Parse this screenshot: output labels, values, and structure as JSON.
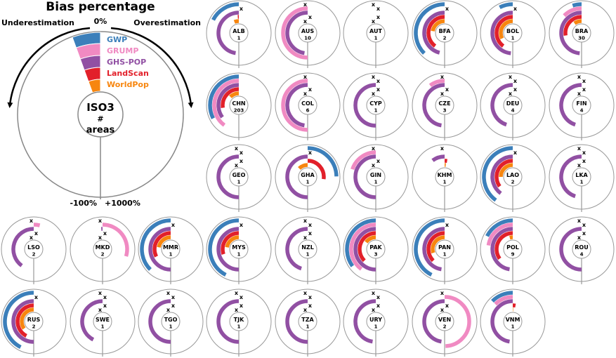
{
  "legend": {
    "title": "Bias percentage",
    "zero_label": "0%",
    "min_label": "-100%",
    "max_label": "+1000%",
    "under_label": "Underestimation",
    "over_label": "Overestimation",
    "center_line1": "ISO3",
    "center_line2": "#",
    "center_line3": "areas",
    "products": [
      {
        "name": "GWP",
        "color": "#3b7fba"
      },
      {
        "name": "GRUMP",
        "color": "#f08ac2"
      },
      {
        "name": "GHS-POP",
        "color": "#9150a3"
      },
      {
        "name": "LandScan",
        "color": "#e2202a"
      },
      {
        "name": "WorldPop",
        "color": "#f7860f"
      }
    ]
  },
  "chart_data": {
    "type": "radial-bar-small-multiples",
    "title": "Bias percentage",
    "series": [
      "GWP",
      "GRUMP",
      "GHS-POP",
      "LandScan",
      "WorldPop"
    ],
    "scale": {
      "under_min": -100,
      "over_max": 1000,
      "zero": 0
    },
    "missing_marker": "x",
    "countries": [
      {
        "iso": "ALB",
        "n": "1",
        "values": [
          -35,
          null,
          -95,
          -2,
          -12
        ]
      },
      {
        "iso": "AUS",
        "n": "10",
        "values": [
          null,
          -100,
          -95,
          null,
          null
        ]
      },
      {
        "iso": "AUT",
        "n": "1",
        "values": [
          null,
          null,
          0,
          null,
          null
        ]
      },
      {
        "iso": "BFA",
        "n": "2",
        "values": [
          -75,
          null,
          -92,
          -80,
          -45
        ]
      },
      {
        "iso": "BOL",
        "n": "1",
        "values": [
          -15,
          null,
          -97,
          -80,
          -65
        ]
      },
      {
        "iso": "BRA",
        "n": "30",
        "values": [
          -10,
          -25,
          -97,
          -55,
          -20
        ]
      },
      {
        "iso": "CHN",
        "n": "203",
        "values": [
          -65,
          -80,
          -70,
          -55,
          -25
        ]
      },
      {
        "iso": "COL",
        "n": "6",
        "values": [
          null,
          -100,
          -95,
          null,
          null
        ]
      },
      {
        "iso": "CYP",
        "n": "1",
        "values": [
          null,
          null,
          -100,
          null,
          null
        ]
      },
      {
        "iso": "CZE",
        "n": "3",
        "values": [
          null,
          -20,
          -95,
          null,
          null
        ]
      },
      {
        "iso": "DEU",
        "n": "4",
        "values": [
          null,
          null,
          -90,
          null,
          null
        ]
      },
      {
        "iso": "FIN",
        "n": "4",
        "values": [
          null,
          null,
          -90,
          null,
          null
        ]
      },
      {
        "iso": "GEO",
        "n": "1",
        "values": [
          null,
          null,
          -100,
          null,
          null
        ]
      },
      {
        "iso": "GHA",
        "n": "1",
        "values": [
          500,
          null,
          -100,
          550,
          -25
        ]
      },
      {
        "iso": "GIN",
        "n": "1",
        "values": [
          null,
          -40,
          -100,
          null,
          null
        ]
      },
      {
        "iso": "KHM",
        "n": "1",
        "values": [
          null,
          0,
          -20,
          50,
          30
        ]
      },
      {
        "iso": "LAO",
        "n": "2",
        "values": [
          -80,
          null,
          -80,
          -70,
          -50
        ]
      },
      {
        "iso": "LKA",
        "n": "1",
        "values": [
          null,
          null,
          -90,
          null,
          null
        ]
      },
      {
        "iso": "LSO",
        "n": "2",
        "values": [
          null,
          80,
          -80,
          null,
          null
        ]
      },
      {
        "iso": "MKD",
        "n": "2",
        "values": [
          null,
          600,
          -2,
          null,
          null
        ]
      },
      {
        "iso": "MMR",
        "n": "1",
        "values": [
          -75,
          null,
          -100,
          -65,
          -45
        ]
      },
      {
        "iso": "MYS",
        "n": "1",
        "values": [
          -85,
          null,
          -100,
          -60,
          -45
        ]
      },
      {
        "iso": "NZL",
        "n": "1",
        "values": [
          null,
          null,
          -90,
          null,
          null
        ]
      },
      {
        "iso": "PAK",
        "n": "3",
        "values": [
          -70,
          -80,
          -100,
          -75,
          -30
        ]
      },
      {
        "iso": "PAN",
        "n": "1",
        "values": [
          -85,
          null,
          -95,
          -75,
          -60
        ]
      },
      {
        "iso": "POL",
        "n": "9",
        "values": [
          -35,
          -45,
          -95,
          -70,
          -8
        ]
      },
      {
        "iso": "ROU",
        "n": "4",
        "values": [
          null,
          null,
          -100,
          null,
          null
        ]
      },
      {
        "iso": "RUS",
        "n": "2",
        "values": [
          -85,
          null,
          -100,
          -85,
          -70
        ]
      },
      {
        "iso": "SWE",
        "n": "1",
        "values": [
          null,
          null,
          -85,
          null,
          null
        ]
      },
      {
        "iso": "TGO",
        "n": "1",
        "values": [
          null,
          null,
          -100,
          null,
          null
        ]
      },
      {
        "iso": "TJK",
        "n": "1",
        "values": [
          null,
          null,
          -100,
          null,
          null
        ]
      },
      {
        "iso": "TZA",
        "n": "1",
        "values": [
          null,
          null,
          -100,
          null,
          null
        ]
      },
      {
        "iso": "URY",
        "n": "1",
        "values": [
          null,
          null,
          -95,
          null,
          null
        ]
      },
      {
        "iso": "VEN",
        "n": "2",
        "values": [
          null,
          1000,
          -95,
          null,
          null
        ]
      },
      {
        "iso": "VNM",
        "n": "1",
        "values": [
          -25,
          -25,
          -95,
          55,
          8
        ]
      }
    ]
  }
}
